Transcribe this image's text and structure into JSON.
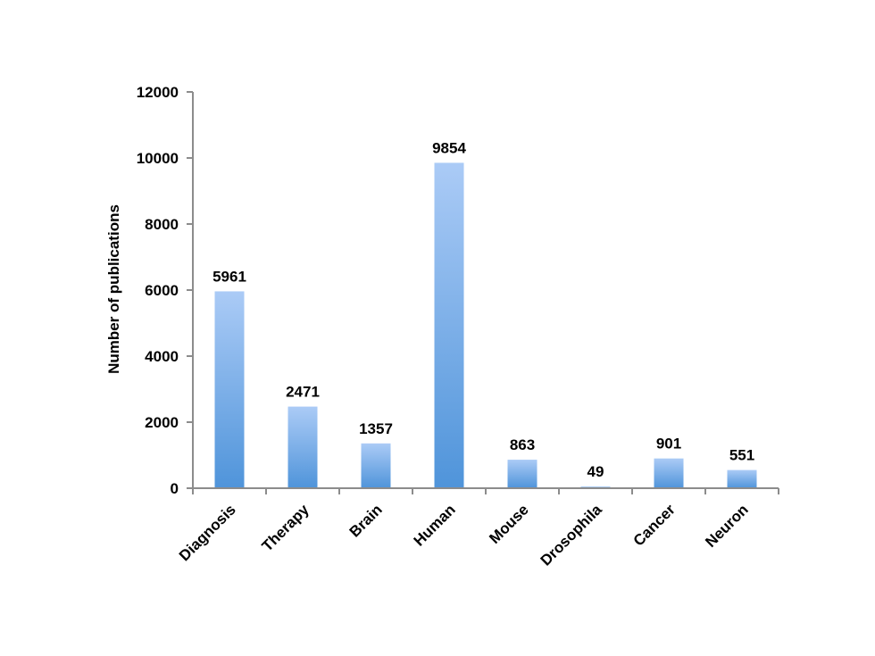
{
  "chart_data": {
    "type": "bar",
    "title": "",
    "xlabel": "",
    "ylabel": "Number of publications",
    "categories": [
      "Diagnosis",
      "Therapy",
      "Brain",
      "Human",
      "Mouse",
      "Drosophila",
      "Cancer",
      "Neuron"
    ],
    "values": [
      5961,
      2471,
      1357,
      9854,
      863,
      49,
      901,
      551
    ],
    "data_labels": [
      "5961",
      "2471",
      "1357",
      "9854",
      "863",
      "49",
      "901",
      "551"
    ],
    "ylim": [
      0,
      12000
    ],
    "yticks": [
      0,
      2000,
      4000,
      6000,
      8000,
      10000,
      12000
    ],
    "ytick_labels": [
      "0",
      "2000",
      "4000",
      "6000",
      "8000",
      "10000",
      "12000"
    ],
    "grid": false,
    "legend": "none",
    "colors": {
      "bar_top": "#abcbf6",
      "bar_bottom": "#4f94da",
      "axis": "#8c8c8c"
    }
  }
}
